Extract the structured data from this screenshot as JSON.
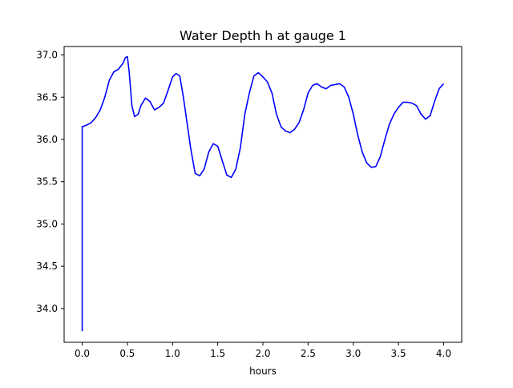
{
  "chart_data": {
    "type": "line",
    "title": "Water Depth h at gauge 1",
    "xlabel": "hours",
    "ylabel": "",
    "xlim": [
      -0.2,
      4.2
    ],
    "ylim": [
      33.6,
      37.1
    ],
    "xticks": [
      0.0,
      0.5,
      1.0,
      1.5,
      2.0,
      2.5,
      3.0,
      3.5,
      4.0
    ],
    "xtick_labels": [
      "0.0",
      "0.5",
      "1.0",
      "1.5",
      "2.0",
      "2.5",
      "3.0",
      "3.5",
      "4.0"
    ],
    "yticks": [
      34.0,
      34.5,
      35.0,
      35.5,
      36.0,
      36.5,
      37.0
    ],
    "ytick_labels": [
      "34.0",
      "34.5",
      "35.0",
      "35.5",
      "36.0",
      "36.5",
      "37.0"
    ],
    "grid": false,
    "legend": "none",
    "series": [
      {
        "color": "#0000ff",
        "x": [
          0.0,
          0.0,
          0.05,
          0.1,
          0.15,
          0.2,
          0.25,
          0.3,
          0.35,
          0.4,
          0.45,
          0.48,
          0.5,
          0.52,
          0.55,
          0.58,
          0.62,
          0.65,
          0.7,
          0.75,
          0.8,
          0.85,
          0.9,
          0.95,
          1.0,
          1.04,
          1.08,
          1.12,
          1.16,
          1.2,
          1.25,
          1.3,
          1.35,
          1.4,
          1.45,
          1.5,
          1.55,
          1.6,
          1.65,
          1.7,
          1.75,
          1.8,
          1.85,
          1.9,
          1.95,
          2.0,
          2.05,
          2.1,
          2.15,
          2.2,
          2.25,
          2.3,
          2.35,
          2.4,
          2.45,
          2.5,
          2.55,
          2.6,
          2.65,
          2.7,
          2.75,
          2.8,
          2.85,
          2.9,
          2.95,
          3.0,
          3.05,
          3.1,
          3.15,
          3.2,
          3.25,
          3.3,
          3.35,
          3.4,
          3.45,
          3.5,
          3.55,
          3.6,
          3.65,
          3.7,
          3.75,
          3.8,
          3.85,
          3.9,
          3.95,
          4.0
        ],
        "y": [
          33.73,
          36.15,
          36.17,
          36.2,
          36.26,
          36.35,
          36.5,
          36.7,
          36.8,
          36.83,
          36.9,
          36.97,
          36.98,
          36.8,
          36.4,
          36.27,
          36.3,
          36.4,
          36.49,
          36.45,
          36.35,
          36.38,
          36.43,
          36.58,
          36.74,
          36.78,
          36.75,
          36.5,
          36.2,
          35.9,
          35.6,
          35.57,
          35.65,
          35.85,
          35.95,
          35.92,
          35.75,
          35.58,
          35.55,
          35.65,
          35.9,
          36.3,
          36.55,
          36.75,
          36.79,
          36.74,
          36.68,
          36.55,
          36.3,
          36.15,
          36.1,
          36.08,
          36.12,
          36.2,
          36.35,
          36.55,
          36.64,
          36.66,
          36.62,
          36.6,
          36.64,
          36.65,
          36.66,
          36.62,
          36.5,
          36.3,
          36.05,
          35.85,
          35.72,
          35.67,
          35.68,
          35.8,
          36.0,
          36.18,
          36.3,
          36.38,
          36.44,
          36.44,
          36.43,
          36.4,
          36.3,
          36.24,
          36.28,
          36.45,
          36.6,
          36.66
        ]
      }
    ]
  }
}
